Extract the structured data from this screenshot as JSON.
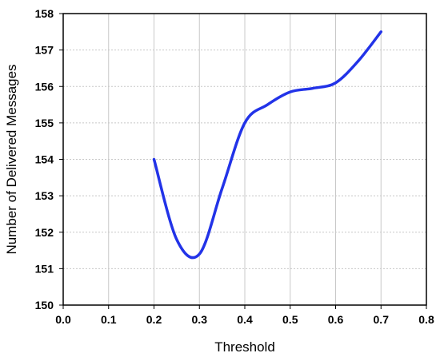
{
  "chart_data": {
    "type": "line",
    "title": "",
    "xlabel": "Threshold",
    "ylabel": "Number of Delivered Messages",
    "xlim": [
      0.0,
      0.8
    ],
    "ylim": [
      150,
      158
    ],
    "x_ticks": [
      "0.0",
      "0.1",
      "0.2",
      "0.3",
      "0.4",
      "0.5",
      "0.6",
      "0.7",
      "0.8"
    ],
    "y_ticks": [
      "150",
      "151",
      "152",
      "153",
      "154",
      "155",
      "156",
      "157",
      "158"
    ],
    "grid": true,
    "legend": "none",
    "series": [
      {
        "color": "#2233e8",
        "x": [
          0.2,
          0.25,
          0.3,
          0.35,
          0.4,
          0.45,
          0.5,
          0.55,
          0.6,
          0.65,
          0.7
        ],
        "y": [
          154.0,
          151.8,
          151.4,
          153.2,
          155.0,
          155.5,
          155.85,
          155.95,
          156.1,
          156.7,
          157.5
        ]
      }
    ]
  }
}
